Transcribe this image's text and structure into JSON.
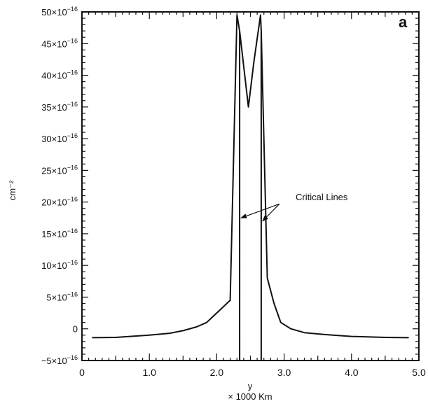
{
  "chart_data": {
    "type": "line",
    "panel_label": "a",
    "xlabel": "y",
    "xlabel_units": "× 1000 Km",
    "ylabel": "cm⁻²",
    "xlim": [
      0,
      5.0
    ],
    "ylim": [
      -5,
      50
    ],
    "y_exponent": "−16",
    "y_ticks": [
      {
        "value": 50,
        "mantissa": "50×10",
        "sup": "−16"
      },
      {
        "value": 45,
        "mantissa": "45×10",
        "sup": "−16"
      },
      {
        "value": 40,
        "mantissa": "40×10",
        "sup": "−16"
      },
      {
        "value": 35,
        "mantissa": "35×10",
        "sup": "−16"
      },
      {
        "value": 30,
        "mantissa": "30×10",
        "sup": "−16"
      },
      {
        "value": 25,
        "mantissa": "25×10",
        "sup": "−16"
      },
      {
        "value": 20,
        "mantissa": "20×10",
        "sup": "−16"
      },
      {
        "value": 15,
        "mantissa": "15×10",
        "sup": "−16"
      },
      {
        "value": 10,
        "mantissa": "10×10",
        "sup": "−16"
      },
      {
        "value": 5,
        "mantissa": "5×10",
        "sup": "−16"
      },
      {
        "value": 0,
        "mantissa": "0",
        "sup": ""
      },
      {
        "value": -5,
        "mantissa": "−5×10",
        "sup": "−16"
      }
    ],
    "x_ticks": [
      {
        "value": 0,
        "label": "0"
      },
      {
        "value": 1.0,
        "label": "1.0"
      },
      {
        "value": 2.0,
        "label": "2.0"
      },
      {
        "value": 3.0,
        "label": "3.0"
      },
      {
        "value": 4.0,
        "label": "4.0"
      },
      {
        "value": 5.0,
        "label": "5.0"
      }
    ],
    "series": [
      {
        "x": [
          0.15,
          0.5,
          1.0,
          1.3,
          1.5,
          1.7,
          1.85,
          1.95,
          2.05,
          2.2,
          2.3,
          2.34,
          2.34,
          2.34,
          2.47,
          2.55,
          2.65,
          2.66,
          2.66,
          2.66,
          2.75,
          2.85,
          2.95,
          3.1,
          3.3,
          3.6,
          4.0,
          4.5,
          4.85
        ],
        "y": [
          -1.4,
          -1.35,
          -1.0,
          -0.7,
          -0.3,
          0.3,
          1.0,
          2.0,
          3.0,
          4.5,
          49.5,
          47.0,
          -5.0,
          47.0,
          35.0,
          42.0,
          49.5,
          47.0,
          -5.0,
          47.0,
          8.0,
          4.0,
          1.0,
          0.0,
          -0.6,
          -0.9,
          -1.2,
          -1.35,
          -1.4
        ]
      }
    ],
    "annotation": {
      "text": "Critical Lines",
      "arrow_targets": [
        {
          "x": 2.34,
          "y": 17.5
        },
        {
          "x": 2.66,
          "y": 17.0
        }
      ]
    }
  }
}
